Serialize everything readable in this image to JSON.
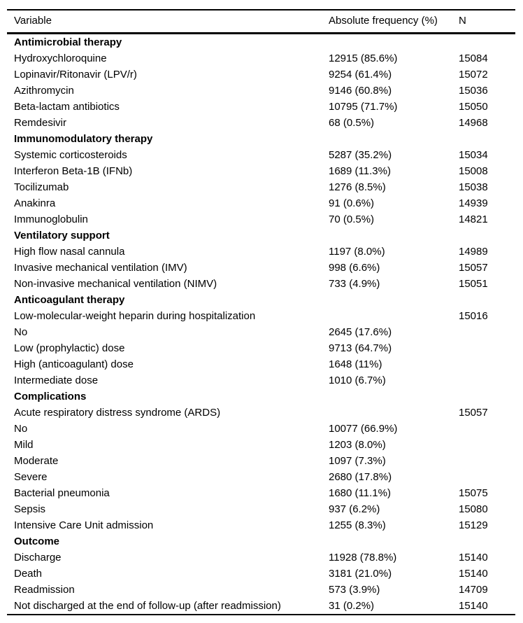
{
  "table": {
    "columns": [
      "Variable",
      "Absolute frequency (%)",
      "N"
    ],
    "rows": [
      {
        "type": "section",
        "label": "Antimicrobial therapy",
        "freq": "",
        "n": ""
      },
      {
        "type": "data",
        "label": "Hydroxychloroquine",
        "freq": "12915 (85.6%)",
        "n": "15084"
      },
      {
        "type": "data",
        "label": "Lopinavir/Ritonavir (LPV/r)",
        "freq": "9254 (61.4%)",
        "n": "15072"
      },
      {
        "type": "data",
        "label": "Azithromycin",
        "freq": "9146 (60.8%)",
        "n": "15036"
      },
      {
        "type": "data",
        "label": "Beta-lactam antibiotics",
        "freq": "10795 (71.7%)",
        "n": "15050"
      },
      {
        "type": "data",
        "label": "Remdesivir",
        "freq": "68 (0.5%)",
        "n": "14968"
      },
      {
        "type": "section",
        "label": "Immunomodulatory therapy",
        "freq": "",
        "n": ""
      },
      {
        "type": "data",
        "label": "Systemic corticosteroids",
        "freq": "5287 (35.2%)",
        "n": "15034"
      },
      {
        "type": "data",
        "label": "Interferon Beta-1B (IFNb)",
        "freq": "1689 (11.3%)",
        "n": "15008"
      },
      {
        "type": "data",
        "label": "Tocilizumab",
        "freq": "1276 (8.5%)",
        "n": "15038"
      },
      {
        "type": "data",
        "label": "Anakinra",
        "freq": "91 (0.6%)",
        "n": "14939"
      },
      {
        "type": "data",
        "label": "Immunoglobulin",
        "freq": "70 (0.5%)",
        "n": "14821"
      },
      {
        "type": "section",
        "label": "Ventilatory support",
        "freq": "",
        "n": ""
      },
      {
        "type": "data",
        "label": "High flow nasal cannula",
        "freq": "1197 (8.0%)",
        "n": "14989"
      },
      {
        "type": "data",
        "label": "Invasive mechanical ventilation (IMV)",
        "freq": "998 (6.6%)",
        "n": "15057"
      },
      {
        "type": "data",
        "label": "Non-invasive mechanical ventilation (NIMV)",
        "freq": "733 (4.9%)",
        "n": "15051"
      },
      {
        "type": "section",
        "label": "Anticoagulant therapy",
        "freq": "",
        "n": ""
      },
      {
        "type": "data",
        "label": "Low-molecular-weight heparin during hospitalization",
        "freq": "",
        "n": "15016"
      },
      {
        "type": "data",
        "label": "No",
        "freq": "2645 (17.6%)",
        "n": ""
      },
      {
        "type": "data",
        "label": "Low (prophylactic) dose",
        "freq": "9713 (64.7%)",
        "n": ""
      },
      {
        "type": "data",
        "label": "High (anticoagulant) dose",
        "freq": "1648 (11%)",
        "n": ""
      },
      {
        "type": "data",
        "label": "Intermediate dose",
        "freq": "1010 (6.7%)",
        "n": ""
      },
      {
        "type": "section",
        "label": "Complications",
        "freq": "",
        "n": ""
      },
      {
        "type": "data",
        "label": "Acute respiratory distress syndrome (ARDS)",
        "freq": "",
        "n": "15057"
      },
      {
        "type": "data",
        "label": "No",
        "freq": "10077 (66.9%)",
        "n": ""
      },
      {
        "type": "data",
        "label": "Mild",
        "freq": "1203 (8.0%)",
        "n": ""
      },
      {
        "type": "data",
        "label": "Moderate",
        "freq": "1097 (7.3%)",
        "n": ""
      },
      {
        "type": "data",
        "label": "Severe",
        "freq": "2680 (17.8%)",
        "n": ""
      },
      {
        "type": "data",
        "label": "Bacterial pneumonia",
        "freq": "1680 (11.1%)",
        "n": "15075"
      },
      {
        "type": "data",
        "label": "Sepsis",
        "freq": "937 (6.2%)",
        "n": "15080"
      },
      {
        "type": "data",
        "label": "Intensive Care Unit admission",
        "freq": "1255 (8.3%)",
        "n": "15129"
      },
      {
        "type": "section",
        "label": "Outcome",
        "freq": "",
        "n": ""
      },
      {
        "type": "data",
        "label": "Discharge",
        "freq": "11928 (78.8%)",
        "n": "15140"
      },
      {
        "type": "data",
        "label": "Death",
        "freq": "3181 (21.0%)",
        "n": "15140"
      },
      {
        "type": "data",
        "label": "Readmission",
        "freq": "573 (3.9%)",
        "n": "14709"
      },
      {
        "type": "data",
        "label": "Not discharged at the end of follow-up (after readmission)",
        "freq": "31 (0.2%)",
        "n": "15140"
      }
    ]
  }
}
